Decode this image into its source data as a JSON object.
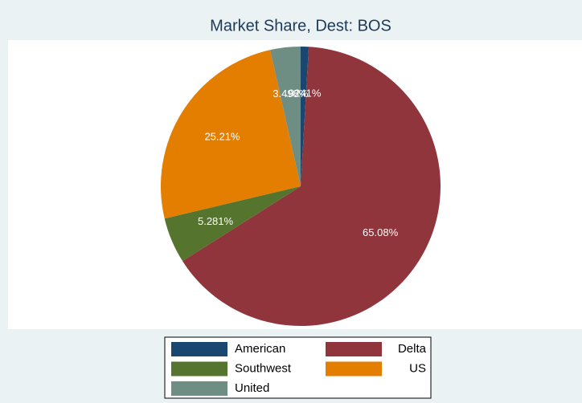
{
  "chart_data": {
    "type": "pie",
    "title": "Market Share, Dest: BOS",
    "categories": [
      "American",
      "Delta",
      "Southwest",
      "US",
      "United"
    ],
    "values": [
      0.9241,
      65.08,
      5.281,
      25.21,
      3.498
    ],
    "value_labels": [
      ".9241%",
      "65.08%",
      "5.281%",
      "25.21%",
      "3.498%"
    ],
    "colors": [
      "#1a476f",
      "#90353b",
      "#55752f",
      "#e37e00",
      "#6e8e84"
    ],
    "legend": "bottom"
  }
}
